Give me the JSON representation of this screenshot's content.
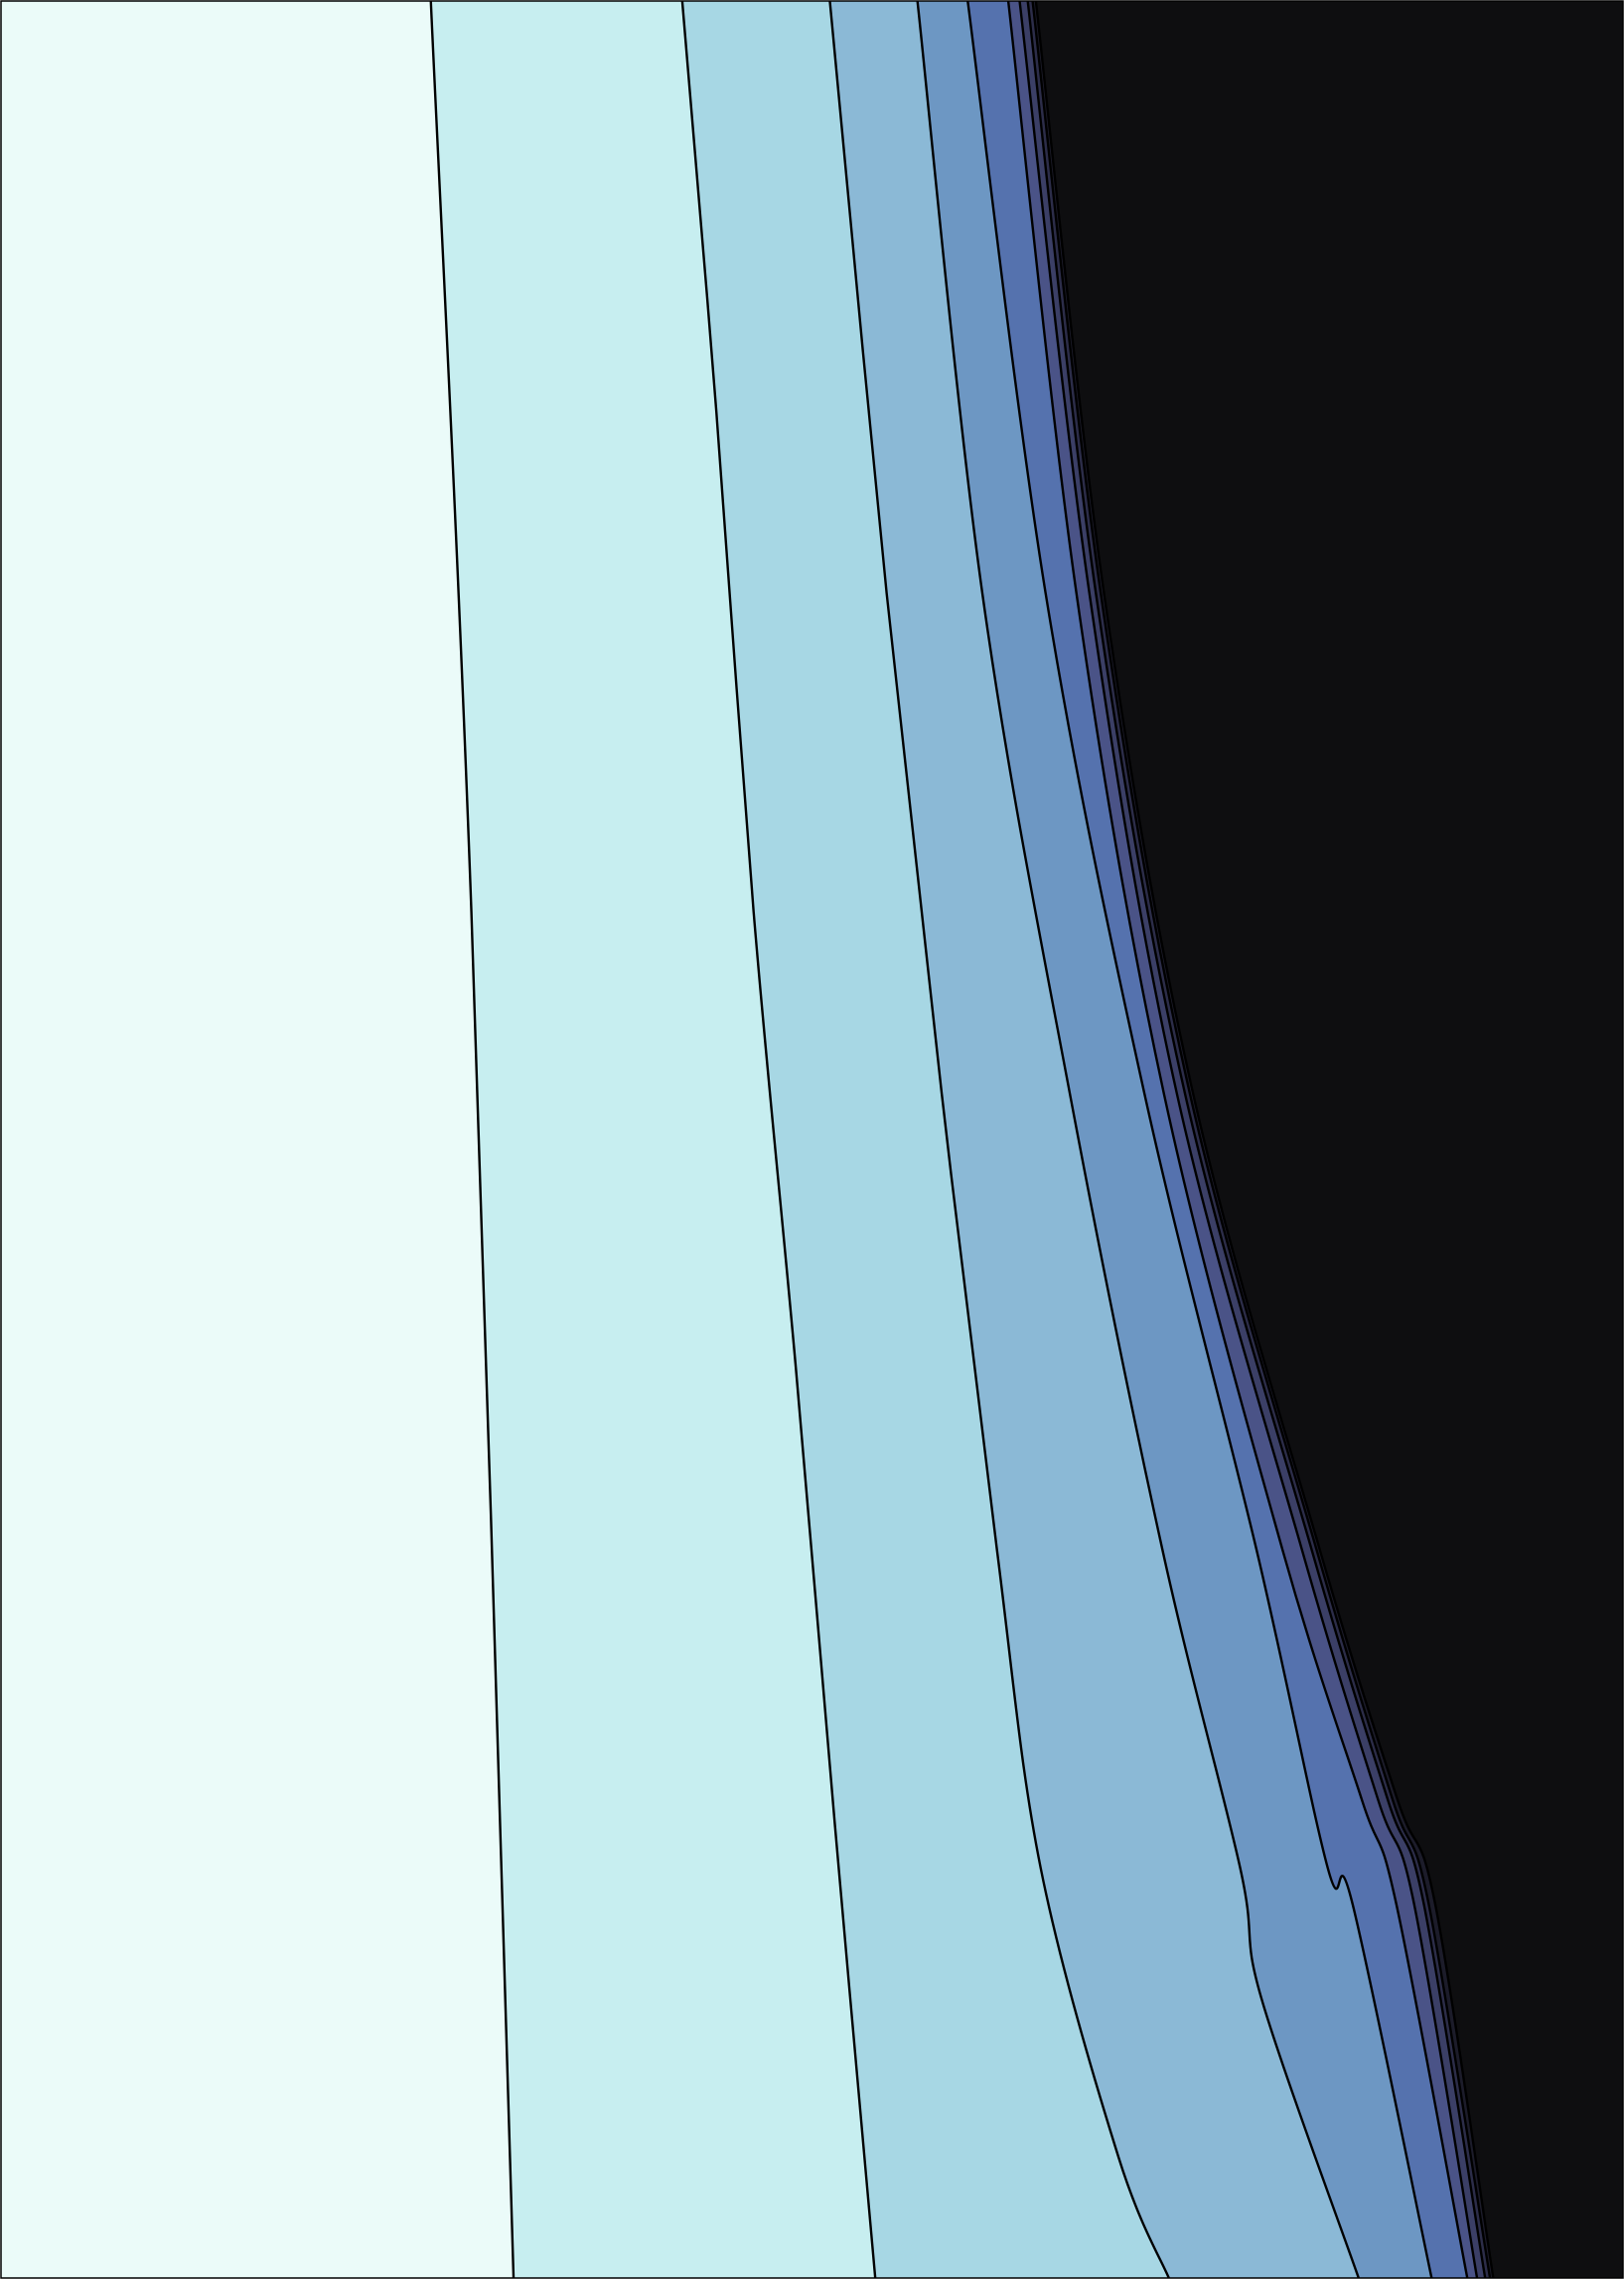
{
  "chart_data": {
    "type": "contour",
    "filled": true,
    "title": "",
    "xlabel": "",
    "ylabel": "",
    "grid": false,
    "legend": "none",
    "colorbar": false,
    "xlim": [
      0,
      1
    ],
    "ylim": [
      0,
      1
    ],
    "line_color": "#000000",
    "bands": [
      {
        "level": 1,
        "color": "#ebfbf9"
      },
      {
        "level": 2,
        "color": "#c7eef0"
      },
      {
        "level": 3,
        "color": "#a7d7e4"
      },
      {
        "level": 4,
        "color": "#8bb9d6"
      },
      {
        "level": 5,
        "color": "#6d97c3"
      },
      {
        "level": 6,
        "color": "#5572ae"
      },
      {
        "level": 7,
        "color": "#4a5387"
      },
      {
        "level": 8,
        "color": "#3b3f66"
      },
      {
        "level": 9,
        "color": "#2c2d49"
      },
      {
        "level": 10,
        "color": "#1c1c2a"
      },
      {
        "level": 11,
        "color": "#0e0e10"
      }
    ],
    "contour_lines": [
      {
        "level": 1,
        "points": [
          [
            0.265,
            1.0
          ],
          [
            0.29,
            0.6
          ],
          [
            0.316,
            0.0
          ]
        ]
      },
      {
        "level": 2,
        "points": [
          [
            0.42,
            1.0
          ],
          [
            0.441,
            0.82
          ],
          [
            0.464,
            0.6
          ],
          [
            0.49,
            0.4
          ],
          [
            0.514,
            0.2
          ],
          [
            0.539,
            0.0
          ]
        ]
      },
      {
        "level": 3,
        "points": [
          [
            0.511,
            1.0
          ],
          [
            0.546,
            0.74
          ],
          [
            0.58,
            0.52
          ],
          [
            0.614,
            0.32
          ],
          [
            0.641,
            0.18
          ],
          [
            0.689,
            0.053
          ],
          [
            0.72,
            0.0
          ]
        ]
      },
      {
        "level": 4,
        "points": [
          [
            0.565,
            1.0
          ],
          [
            0.605,
            0.74
          ],
          [
            0.659,
            0.52
          ],
          [
            0.716,
            0.32
          ],
          [
            0.764,
            0.18
          ],
          [
            0.777,
            0.123
          ],
          [
            0.837,
            0.0
          ]
        ]
      },
      {
        "level": 5,
        "points": [
          [
            0.596,
            1.0
          ],
          [
            0.644,
            0.74
          ],
          [
            0.705,
            0.52
          ],
          [
            0.774,
            0.32
          ],
          [
            0.818,
            0.18
          ],
          [
            0.833,
            0.165
          ],
          [
            0.882,
            0.0
          ]
        ]
      },
      {
        "level": 6,
        "points": [
          [
            0.621,
            1.0
          ],
          [
            0.663,
            0.74
          ],
          [
            0.717,
            0.52
          ],
          [
            0.79,
            0.32
          ],
          [
            0.839,
            0.21
          ],
          [
            0.86,
            0.165
          ],
          [
            0.904,
            0.0
          ]
        ]
      },
      {
        "level": 7,
        "points": [
          [
            0.628,
            1.0
          ],
          [
            0.671,
            0.74
          ],
          [
            0.725,
            0.52
          ],
          [
            0.802,
            0.32
          ],
          [
            0.849,
            0.21
          ],
          [
            0.871,
            0.165
          ],
          [
            0.91,
            0.0
          ]
        ]
      },
      {
        "level": 8,
        "points": [
          [
            0.633,
            1.0
          ],
          [
            0.675,
            0.74
          ],
          [
            0.73,
            0.52
          ],
          [
            0.808,
            0.32
          ],
          [
            0.855,
            0.21
          ],
          [
            0.877,
            0.165
          ],
          [
            0.915,
            0.0
          ]
        ]
      },
      {
        "level": 9,
        "points": [
          [
            0.636,
            1.0
          ],
          [
            0.678,
            0.74
          ],
          [
            0.733,
            0.52
          ],
          [
            0.811,
            0.32
          ],
          [
            0.858,
            0.21
          ],
          [
            0.88,
            0.165
          ],
          [
            0.918,
            0.0
          ]
        ]
      },
      {
        "level": 10,
        "points": [
          [
            0.638,
            1.0
          ],
          [
            0.68,
            0.74
          ],
          [
            0.735,
            0.52
          ],
          [
            0.813,
            0.32
          ],
          [
            0.861,
            0.21
          ],
          [
            0.884,
            0.165
          ],
          [
            0.92,
            0.0
          ]
        ]
      }
    ]
  }
}
